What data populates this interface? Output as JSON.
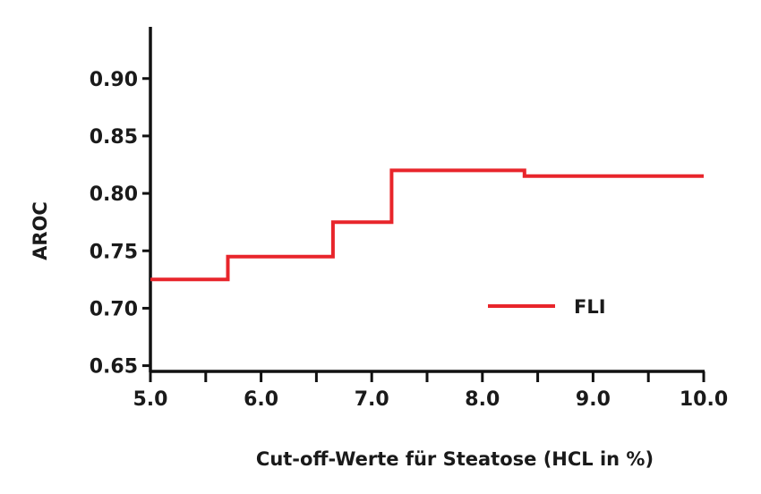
{
  "chart_data": {
    "type": "line",
    "step": true,
    "xlabel": "Cut-off-Werte für Steatose (HCL in %)",
    "ylabel": "AROC",
    "xlim": [
      5.0,
      10.0
    ],
    "ylim": [
      0.645,
      0.945
    ],
    "x_ticks": [
      {
        "value": 5.0,
        "label": "5.0"
      },
      {
        "value": 6.0,
        "label": "6.0"
      },
      {
        "value": 7.0,
        "label": "7.0"
      },
      {
        "value": 8.0,
        "label": "8.0"
      },
      {
        "value": 9.0,
        "label": "9.0"
      },
      {
        "value": 10.0,
        "label": "10.0"
      }
    ],
    "x_minor_ticks": [
      5.5,
      6.5,
      7.5,
      8.5,
      9.5
    ],
    "y_ticks": [
      {
        "value": 0.65,
        "label": "0.65"
      },
      {
        "value": 0.7,
        "label": "0.70"
      },
      {
        "value": 0.75,
        "label": "0.75"
      },
      {
        "value": 0.8,
        "label": "0.80"
      },
      {
        "value": 0.85,
        "label": "0.85"
      },
      {
        "value": 0.9,
        "label": "0.90"
      }
    ],
    "grid": false,
    "legend_position": "right",
    "series": [
      {
        "name": "FLI",
        "color": "#e8252b",
        "points": [
          {
            "x": 5.0,
            "y": 0.725
          },
          {
            "x": 5.7,
            "y": 0.725
          },
          {
            "x": 5.7,
            "y": 0.745
          },
          {
            "x": 6.65,
            "y": 0.745
          },
          {
            "x": 6.65,
            "y": 0.775
          },
          {
            "x": 7.18,
            "y": 0.775
          },
          {
            "x": 7.18,
            "y": 0.82
          },
          {
            "x": 8.38,
            "y": 0.82
          },
          {
            "x": 8.38,
            "y": 0.815
          },
          {
            "x": 10.0,
            "y": 0.815
          }
        ]
      }
    ]
  }
}
